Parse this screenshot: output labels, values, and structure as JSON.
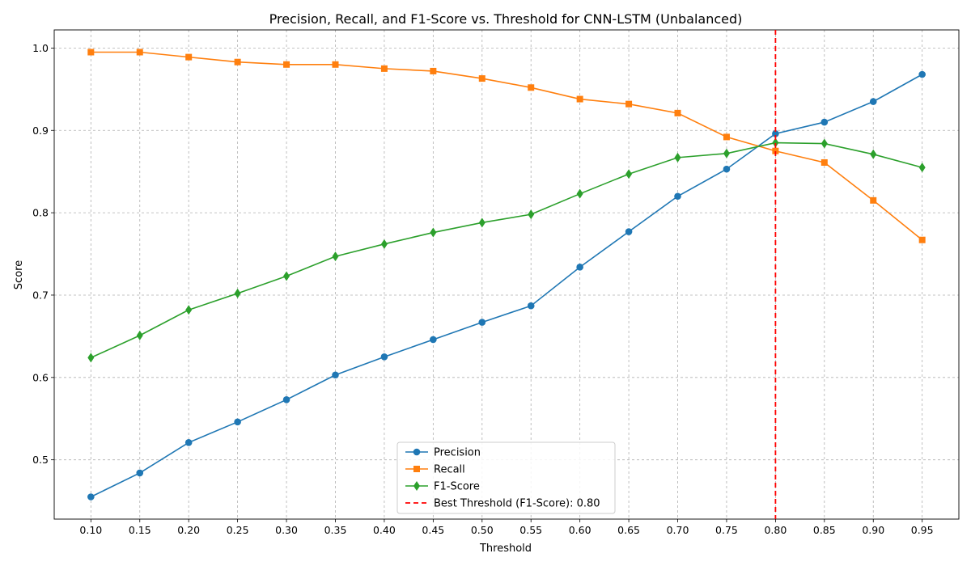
{
  "chart_data": {
    "type": "line",
    "title": "Precision, Recall, and F1-Score vs. Threshold for CNN-LSTM (Unbalanced)",
    "xlabel": "Threshold",
    "ylabel": "Score",
    "x": [
      0.1,
      0.15,
      0.2,
      0.25,
      0.3,
      0.35,
      0.4,
      0.45,
      0.5,
      0.55,
      0.6,
      0.65,
      0.7,
      0.75,
      0.8,
      0.85,
      0.9,
      0.95
    ],
    "x_tick_labels": [
      "0.10",
      "0.15",
      "0.20",
      "0.25",
      "0.30",
      "0.35",
      "0.40",
      "0.45",
      "0.50",
      "0.55",
      "0.60",
      "0.65",
      "0.70",
      "0.75",
      "0.80",
      "0.85",
      "0.90",
      "0.95"
    ],
    "y_ticks": [
      0.5,
      0.6,
      0.7,
      0.8,
      0.9,
      1.0
    ],
    "y_tick_labels": [
      "0.5",
      "0.6",
      "0.7",
      "0.8",
      "0.9",
      "1.0"
    ],
    "xlim": [
      0.0625,
      0.9875
    ],
    "ylim": [
      0.428,
      1.022
    ],
    "grid": true,
    "legend_position": "lower-center",
    "series": [
      {
        "name": "Precision",
        "color": "#1f77b4",
        "marker": "circle",
        "values": [
          0.455,
          0.484,
          0.521,
          0.546,
          0.573,
          0.603,
          0.625,
          0.646,
          0.667,
          0.687,
          0.734,
          0.777,
          0.82,
          0.853,
          0.896,
          0.91,
          0.935,
          0.968
        ]
      },
      {
        "name": "Recall",
        "color": "#ff7f0e",
        "marker": "square",
        "values": [
          0.995,
          0.995,
          0.989,
          0.983,
          0.98,
          0.98,
          0.975,
          0.972,
          0.963,
          0.952,
          0.938,
          0.932,
          0.921,
          0.892,
          0.875,
          0.861,
          0.815,
          0.767
        ]
      },
      {
        "name": "F1-Score",
        "color": "#2ca02c",
        "marker": "diamond",
        "values": [
          0.624,
          0.651,
          0.682,
          0.702,
          0.723,
          0.747,
          0.762,
          0.776,
          0.788,
          0.798,
          0.823,
          0.847,
          0.867,
          0.872,
          0.885,
          0.884,
          0.871,
          0.855
        ]
      }
    ],
    "reference_line": {
      "name": "Best Threshold (F1-Score): 0.80",
      "x": 0.8,
      "color": "#ff0000",
      "style": "dashed"
    }
  }
}
